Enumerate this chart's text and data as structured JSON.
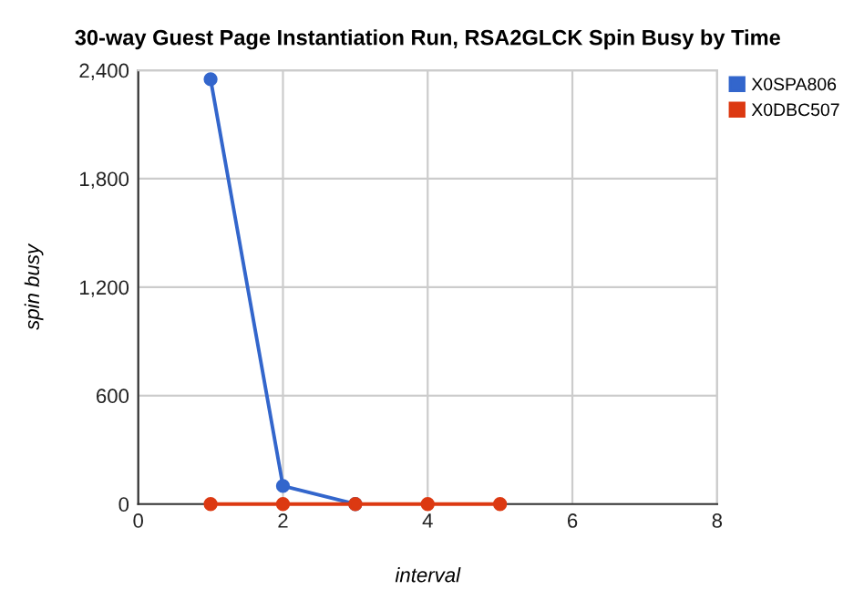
{
  "chart_data": {
    "type": "line",
    "title": "30-way Guest Page Instantiation Run, RSA2GLCK Spin Busy by Time",
    "xlabel": "interval",
    "ylabel": "spin busy",
    "series": [
      {
        "name": "X0SPA806",
        "color": "#3366cc",
        "x": [
          1,
          2,
          3
        ],
        "values": [
          2350,
          100,
          0
        ]
      },
      {
        "name": "X0DBC507",
        "color": "#dc3912",
        "x": [
          1,
          2,
          3,
          4,
          5
        ],
        "values": [
          0,
          0,
          0,
          0,
          0
        ]
      }
    ],
    "xlim": [
      0,
      8
    ],
    "xticks": [
      0,
      2,
      4,
      6,
      8
    ],
    "ylim": [
      0,
      2400
    ],
    "yticks": [
      0,
      600,
      {
        "value": 1200,
        "label": "1,200"
      },
      {
        "value": 1800,
        "label": "1,800"
      },
      {
        "value": 2400,
        "label": "2,400"
      }
    ],
    "grid": true,
    "legend": "top right",
    "marker": "circle",
    "line_style": "solid"
  }
}
